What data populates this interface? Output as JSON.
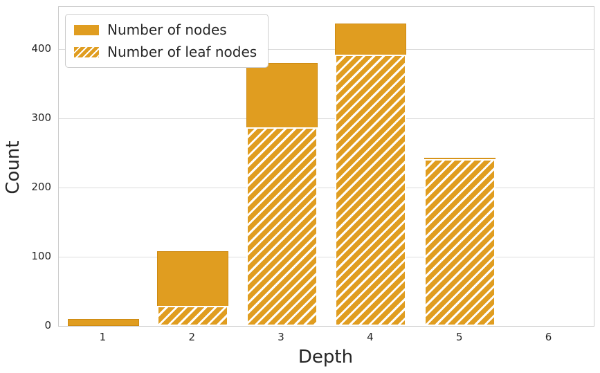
{
  "chart_data": {
    "type": "bar",
    "title": "",
    "xlabel": "Depth",
    "ylabel": "Count",
    "categories": [
      "1",
      "2",
      "3",
      "4",
      "5",
      "6"
    ],
    "series": [
      {
        "name": "Number of nodes",
        "style": "solid",
        "values": [
          10,
          108,
          380,
          437,
          243,
          4
        ]
      },
      {
        "name": "Number of leaf nodes",
        "style": "hatched",
        "values": [
          0,
          29,
          287,
          392,
          241,
          4
        ]
      }
    ],
    "yticks": [
      0,
      100,
      200,
      300,
      400
    ],
    "ylim": [
      0,
      461
    ],
    "grid": "horizontal-only",
    "legend_position": "upper-left",
    "bar_layout": "overlay",
    "hatch_pattern": "diagonal-forward-slash",
    "colors": {
      "bar_fill": "#e09d20",
      "bar_edge": "#cd8a12",
      "hatch_stripe": "#ffffff",
      "grid_line": "#dcdcdc",
      "spine": "#cccccc",
      "text": "#262626",
      "background": "#ffffff"
    }
  }
}
